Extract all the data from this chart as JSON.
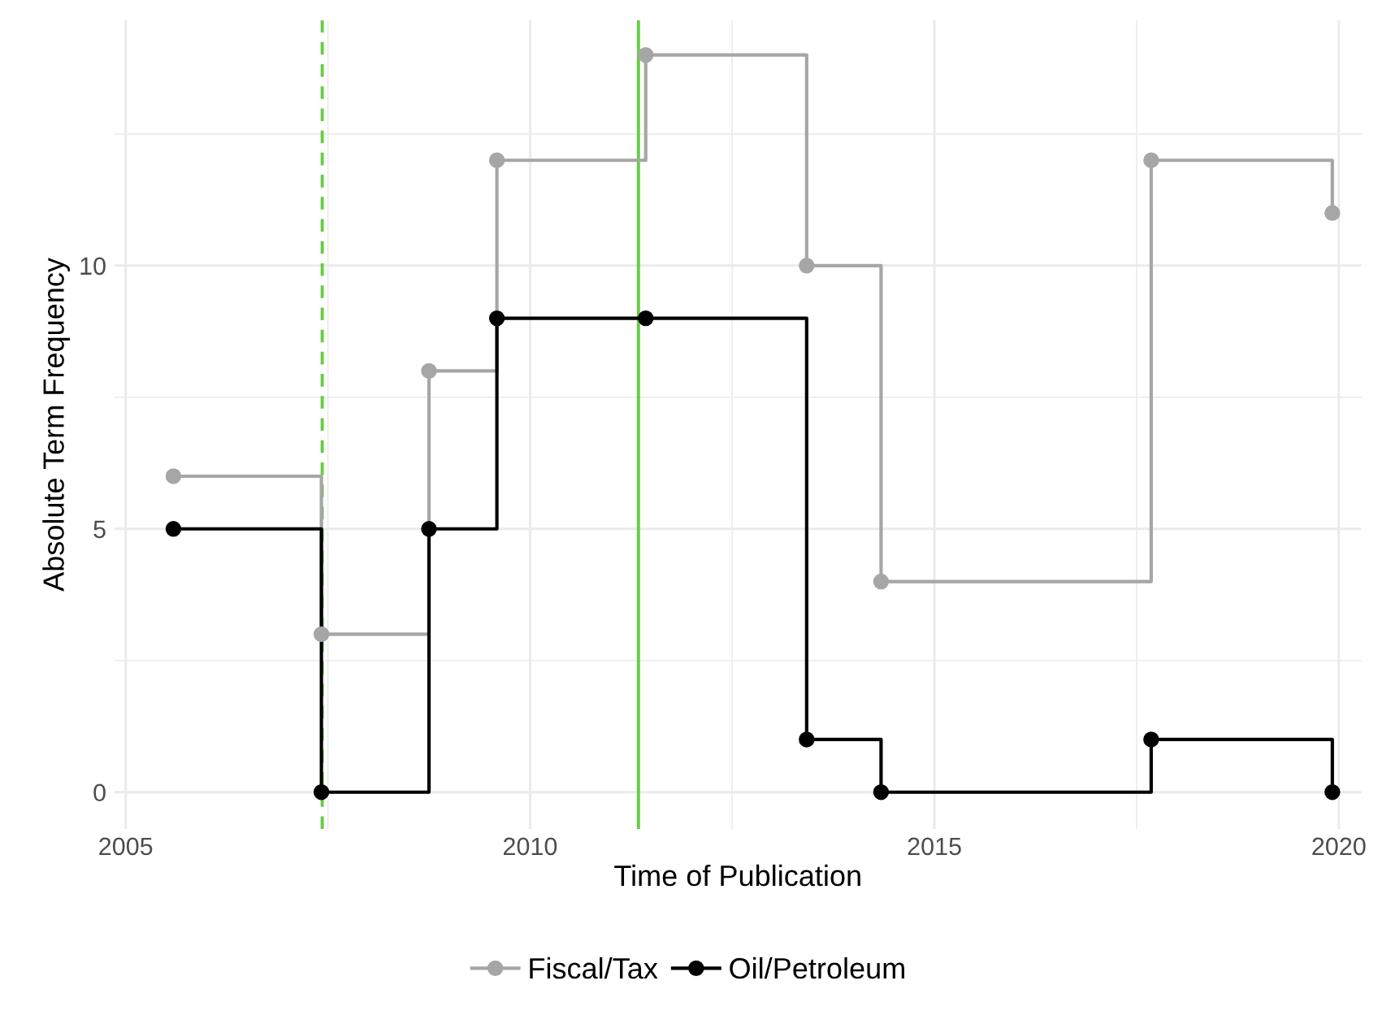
{
  "chart_data": {
    "type": "step",
    "xlabel": "Time of Publication",
    "ylabel": "Absolute Term Frequency",
    "x": [
      2005.59,
      2007.42,
      2008.75,
      2009.59,
      2011.43,
      2013.42,
      2014.34,
      2017.68,
      2019.92
    ],
    "series": [
      {
        "name": "Fiscal/Tax",
        "color": "#a6a6a6",
        "values": [
          6,
          3,
          8,
          12,
          14,
          10,
          4,
          12,
          11
        ]
      },
      {
        "name": "Oil/Petroleum",
        "color": "#000000",
        "values": [
          5,
          0,
          5,
          9,
          9,
          1,
          0,
          1,
          0
        ]
      }
    ],
    "xlim": [
      2004.86,
      2020.28
    ],
    "ylim": [
      -0.7,
      14.66
    ],
    "xticks": [
      2005,
      2010,
      2015,
      2020
    ],
    "yticks": [
      0,
      5,
      10
    ],
    "ref_lines": [
      {
        "axis": "x",
        "value": 2007.43,
        "color": "#66cc44",
        "line_style": "dashed"
      },
      {
        "axis": "x",
        "value": 2011.34,
        "color": "#66cc44",
        "line_style": "solid"
      }
    ],
    "grid": true,
    "legend": "bottom",
    "marker": "circle",
    "line_style": "solid"
  }
}
